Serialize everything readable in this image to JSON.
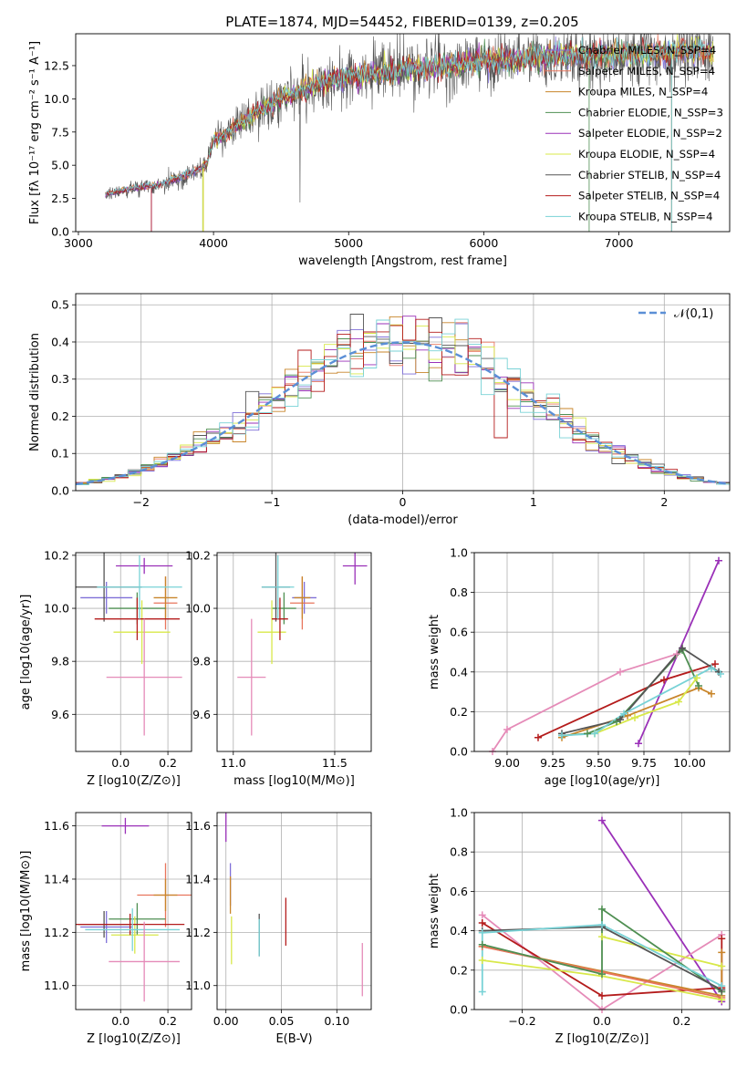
{
  "figure": {
    "title": "PLATE=1874, MJD=54452, FIBERID=0139, z=0.205"
  },
  "legend_models": [
    {
      "label": "Chabrier MILES, N_SSP=4",
      "color": "#7f6fd8"
    },
    {
      "label": "Salpeter MILES, N_SSP=4",
      "color": "#e8755c"
    },
    {
      "label": "Kroupa MILES, N_SSP=4",
      "color": "#c8852a"
    },
    {
      "label": "Chabrier ELODIE, N_SSP=3",
      "color": "#4f8f52"
    },
    {
      "label": "Salpeter ELODIE, N_SSP=2",
      "color": "#9a30b8"
    },
    {
      "label": "Kroupa ELODIE, N_SSP=4",
      "color": "#d8e84a"
    },
    {
      "label": "Chabrier STELIB, N_SSP=4",
      "color": "#555555"
    },
    {
      "label": "Salpeter STELIB, N_SSP=4",
      "color": "#b41c1c"
    },
    {
      "label": "Kroupa STELIB, N_SSP=4",
      "color": "#78d2d6"
    }
  ],
  "chart_data": [
    {
      "id": "spectrum",
      "type": "line",
      "xlabel": "wavelength [Angstrom, rest frame]",
      "ylabel": "Flux [fλ 10⁻¹⁷ erg cm⁻² s⁻¹ A⁻¹]",
      "xlim": [
        2980,
        7820
      ],
      "ylim": [
        0,
        14.9
      ],
      "xticks": [
        3000,
        4000,
        5000,
        6000,
        7000
      ],
      "yticks": [
        0.0,
        2.5,
        5.0,
        7.5,
        10.0,
        12.5
      ],
      "continuum": {
        "x": [
          3200,
          3400,
          3600,
          3800,
          3950,
          4000,
          4100,
          4300,
          4500,
          4800,
          5000,
          5300,
          5600,
          5800,
          6000,
          6300,
          6600,
          7000,
          7500
        ],
        "y": [
          2.8,
          3.2,
          3.5,
          4.2,
          5.0,
          6.8,
          7.3,
          8.8,
          10.0,
          11.2,
          11.6,
          12.0,
          12.3,
          12.4,
          12.8,
          13.0,
          13.2,
          13.3,
          13.5
        ]
      },
      "notes": "spectrum starts at 3200 A; sharp drop to zero for several models near 3540 A, 3925 A, 6780 A and 7390 A"
    },
    {
      "id": "residuals",
      "type": "bar",
      "xlabel": "(data-model)/error",
      "ylabel": "Normed distribution",
      "xlim": [
        -2.5,
        2.5
      ],
      "ylim": [
        0,
        0.53
      ],
      "xticks": [
        -2,
        -1,
        0,
        1,
        2
      ],
      "yticks": [
        0.0,
        0.1,
        0.2,
        0.3,
        0.4,
        0.5
      ],
      "bin_width": 0.1,
      "reference": {
        "label": "𝒩(0,1)",
        "style": "dashed",
        "color": "#5b8fd6"
      },
      "legend_position": "top-right",
      "grid": true
    },
    {
      "id": "age_vs_Z",
      "type": "scatter",
      "xlabel": "Z [log10(Z/Z⊙)]",
      "ylabel": "age  [log10(age/yr)]",
      "xlim": [
        -0.19,
        0.3
      ],
      "ylim": [
        9.46,
        10.21
      ],
      "xticks": [
        0.0,
        0.2
      ],
      "yticks": [
        9.6,
        9.8,
        10.0,
        10.2
      ],
      "points": [
        {
          "x": -0.06,
          "y": 10.04,
          "xerr": 0.11,
          "yerr": 0.06,
          "color": "#7f6fd8"
        },
        {
          "x": 0.19,
          "y": 10.02,
          "xerr": 0.05,
          "yerr": 0.1,
          "color": "#e8755c"
        },
        {
          "x": 0.19,
          "y": 10.04,
          "xerr": 0.05,
          "yerr": 0.08,
          "color": "#c8852a"
        },
        {
          "x": 0.07,
          "y": 10.0,
          "xerr": 0.12,
          "yerr": 0.06,
          "color": "#4f8f52"
        },
        {
          "x": 0.1,
          "y": 10.16,
          "xerr": 0.12,
          "yerr": 0.03,
          "color": "#9a30b8"
        },
        {
          "x": 0.09,
          "y": 9.91,
          "xerr": 0.12,
          "yerr": 0.12,
          "color": "#d8e84a"
        },
        {
          "x": -0.07,
          "y": 10.08,
          "xerr": 0.16,
          "yerr": 0.13,
          "color": "#555555"
        },
        {
          "x": 0.07,
          "y": 9.96,
          "xerr": 0.18,
          "yerr": 0.08,
          "color": "#b41c1c"
        },
        {
          "x": 0.08,
          "y": 10.08,
          "xerr": 0.18,
          "yerr": 0.12,
          "color": "#78d2d6"
        },
        {
          "x": 0.1,
          "y": 9.74,
          "xerr": 0.16,
          "yerr": 0.22,
          "color": "#e58bb8"
        }
      ]
    },
    {
      "id": "age_vs_mass",
      "type": "scatter",
      "xlabel": "mass [log10(M/M⊙)]",
      "ylabel": "",
      "xlim": [
        10.92,
        11.68
      ],
      "ylim": [
        9.46,
        10.21
      ],
      "xticks": [
        11.0,
        11.5
      ],
      "yticks": [
        9.6,
        9.8,
        10.0,
        10.2
      ],
      "points": [
        {
          "x": 11.35,
          "y": 10.04,
          "xerr": 0.06,
          "yerr": 0.06,
          "color": "#7f6fd8"
        },
        {
          "x": 11.34,
          "y": 10.02,
          "xerr": 0.06,
          "yerr": 0.1,
          "color": "#e8755c"
        },
        {
          "x": 11.34,
          "y": 10.04,
          "xerr": 0.04,
          "yerr": 0.08,
          "color": "#c8852a"
        },
        {
          "x": 11.25,
          "y": 10.0,
          "xerr": 0.06,
          "yerr": 0.06,
          "color": "#4f8f52"
        },
        {
          "x": 11.6,
          "y": 10.16,
          "xerr": 0.06,
          "yerr": 0.07,
          "color": "#9a30b8"
        },
        {
          "x": 11.19,
          "y": 9.91,
          "xerr": 0.07,
          "yerr": 0.12,
          "color": "#d8e84a"
        },
        {
          "x": 11.21,
          "y": 10.08,
          "xerr": 0.07,
          "yerr": 0.13,
          "color": "#555555"
        },
        {
          "x": 11.23,
          "y": 9.96,
          "xerr": 0.04,
          "yerr": 0.08,
          "color": "#b41c1c"
        },
        {
          "x": 11.22,
          "y": 10.08,
          "xerr": 0.08,
          "yerr": 0.12,
          "color": "#78d2d6"
        },
        {
          "x": 11.09,
          "y": 9.74,
          "xerr": 0.07,
          "yerr": 0.22,
          "color": "#e58bb8"
        }
      ]
    },
    {
      "id": "weight_vs_age",
      "type": "line",
      "xlabel": "age  [log10(age/yr)]",
      "ylabel": "mass weight",
      "xlim": [
        8.82,
        10.22
      ],
      "ylim": [
        0,
        1.0
      ],
      "xticks": [
        9.0,
        9.25,
        9.5,
        9.75,
        10.0
      ],
      "yticks": [
        0.0,
        0.2,
        0.4,
        0.6,
        0.8,
        1.0
      ],
      "series": [
        {
          "color": "#e58bb8",
          "x": [
            8.92,
            9.0,
            9.62,
            9.93
          ],
          "y": [
            0.0,
            0.11,
            0.4,
            0.49
          ]
        },
        {
          "color": "#9a30b8",
          "x": [
            9.72,
            10.16
          ],
          "y": [
            0.04,
            0.96
          ]
        },
        {
          "color": "#b41c1c",
          "x": [
            9.17,
            9.86,
            10.14
          ],
          "y": [
            0.07,
            0.36,
            0.44
          ]
        },
        {
          "color": "#c8852a",
          "x": [
            9.3,
            9.66,
            10.05,
            10.12
          ],
          "y": [
            0.07,
            0.18,
            0.32,
            0.29
          ]
        },
        {
          "color": "#4f8f52",
          "x": [
            9.3,
            9.44,
            9.6,
            9.96,
            10.05
          ],
          "y": [
            0.08,
            0.09,
            0.15,
            0.51,
            0.33
          ]
        },
        {
          "color": "#555555",
          "x": [
            9.3,
            9.62,
            9.96,
            10.16
          ],
          "y": [
            0.09,
            0.16,
            0.52,
            0.4
          ]
        },
        {
          "color": "#d8e84a",
          "x": [
            9.48,
            9.7,
            9.94,
            10.04
          ],
          "y": [
            0.09,
            0.17,
            0.25,
            0.37
          ]
        },
        {
          "color": "#78d2d6",
          "x": [
            9.3,
            9.48,
            9.64,
            10.12,
            10.17
          ],
          "y": [
            0.08,
            0.09,
            0.19,
            0.42,
            0.39
          ]
        }
      ]
    },
    {
      "id": "mass_vs_Z",
      "type": "scatter",
      "xlabel": "Z [log10(Z/Z⊙)]",
      "ylabel": "mass [log10(M/M⊙)]",
      "xlim": [
        -0.19,
        0.3
      ],
      "ylim": [
        10.91,
        11.65
      ],
      "xticks": [
        0.0,
        0.2
      ],
      "yticks": [
        11.0,
        11.2,
        11.4,
        11.6
      ],
      "points": [
        {
          "x": -0.06,
          "y": 11.22,
          "xerr": 0.11,
          "yerr": 0.06,
          "color": "#7f6fd8"
        },
        {
          "x": 0.19,
          "y": 11.34,
          "xerr": 0.12,
          "yerr": 0.12,
          "color": "#e8755c"
        },
        {
          "x": 0.19,
          "y": 11.34,
          "xerr": 0.05,
          "yerr": 0.06,
          "color": "#c8852a"
        },
        {
          "x": 0.07,
          "y": 11.25,
          "xerr": 0.12,
          "yerr": 0.06,
          "color": "#4f8f52"
        },
        {
          "x": 0.02,
          "y": 11.6,
          "xerr": 0.1,
          "yerr": 0.03,
          "color": "#9a30b8"
        },
        {
          "x": 0.06,
          "y": 11.19,
          "xerr": 0.1,
          "yerr": 0.07,
          "color": "#d8e84a"
        },
        {
          "x": -0.07,
          "y": 11.23,
          "xerr": 0.11,
          "yerr": 0.05,
          "color": "#555555"
        },
        {
          "x": 0.04,
          "y": 11.23,
          "xerr": 0.23,
          "yerr": 0.04,
          "color": "#b41c1c"
        },
        {
          "x": 0.05,
          "y": 11.21,
          "xerr": 0.2,
          "yerr": 0.08,
          "color": "#78d2d6"
        },
        {
          "x": 0.1,
          "y": 11.09,
          "xerr": 0.15,
          "yerr": 0.15,
          "color": "#e58bb8"
        }
      ]
    },
    {
      "id": "mass_vs_EBV",
      "type": "scatter",
      "xlabel": "E(B-V)",
      "ylabel": "",
      "xlim": [
        -0.008,
        0.131
      ],
      "ylim": [
        10.91,
        11.65
      ],
      "xticks": [
        0.0,
        0.05,
        0.1
      ],
      "yticks": [
        11.0,
        11.2,
        11.4,
        11.6
      ],
      "points": [
        {
          "x": 0.0,
          "y": 11.6,
          "yerr": 0.06,
          "color": "#9a30b8"
        },
        {
          "x": 0.004,
          "y": 11.38,
          "yerr": 0.08,
          "color": "#7f6fd8"
        },
        {
          "x": 0.004,
          "y": 11.34,
          "yerr": 0.07,
          "color": "#c8852a"
        },
        {
          "x": 0.005,
          "y": 11.17,
          "yerr": 0.09,
          "color": "#d8e84a"
        },
        {
          "x": 0.03,
          "y": 11.19,
          "yerr": 0.08,
          "color": "#555555"
        },
        {
          "x": 0.03,
          "y": 11.18,
          "yerr": 0.07,
          "color": "#78d2d6"
        },
        {
          "x": 0.054,
          "y": 11.24,
          "yerr": 0.09,
          "color": "#b41c1c"
        },
        {
          "x": 0.123,
          "y": 11.06,
          "yerr": 0.1,
          "color": "#e58bb8"
        }
      ]
    },
    {
      "id": "weight_vs_Z",
      "type": "line",
      "xlabel": "Z [log10(Z/Z⊙)]",
      "ylabel": "mass weight",
      "xlim": [
        -0.32,
        0.32
      ],
      "ylim": [
        0,
        1.0
      ],
      "xticks": [
        -0.2,
        0.0,
        0.2
      ],
      "yticks": [
        0.0,
        0.2,
        0.4,
        0.6,
        0.8,
        1.0
      ],
      "series": [
        {
          "color": "#9a30b8",
          "x": [
            0.0,
            0.3
          ],
          "y": [
            0.96,
            0.04
          ]
        },
        {
          "color": "#e58bb8",
          "x": [
            -0.3,
            0.0,
            0.3
          ],
          "y": [
            0.48,
            0.0,
            0.38
          ]
        },
        {
          "color": "#b41c1c",
          "x": [
            -0.3,
            0.0,
            0.3,
            0.3
          ],
          "y": [
            0.44,
            0.07,
            0.11,
            0.36
          ]
        },
        {
          "color": "#c8852a",
          "x": [
            -0.3,
            0.3,
            0.3
          ],
          "y": [
            0.32,
            0.07,
            0.29
          ]
        },
        {
          "color": "#e8755c",
          "x": [
            -0.3,
            0.3
          ],
          "y": [
            0.32,
            0.06
          ]
        },
        {
          "color": "#d8e84a",
          "x": [
            -0.3,
            0.0,
            0.3
          ],
          "y": [
            0.25,
            0.17,
            0.05
          ]
        },
        {
          "color": "#d8e84a",
          "x": [
            0.0,
            0.3
          ],
          "y": [
            0.37,
            0.22
          ]
        },
        {
          "color": "#4f8f52",
          "x": [
            -0.3,
            0.0,
            0.0,
            0.3
          ],
          "y": [
            0.33,
            0.18,
            0.51,
            0.09
          ]
        },
        {
          "color": "#555555",
          "x": [
            -0.3,
            0.0,
            0.3
          ],
          "y": [
            0.4,
            0.42,
            0.1
          ]
        },
        {
          "color": "#78d2d6",
          "x": [
            -0.3,
            -0.3,
            0.0,
            0.3
          ],
          "y": [
            0.09,
            0.39,
            0.43,
            0.12
          ]
        }
      ]
    }
  ]
}
